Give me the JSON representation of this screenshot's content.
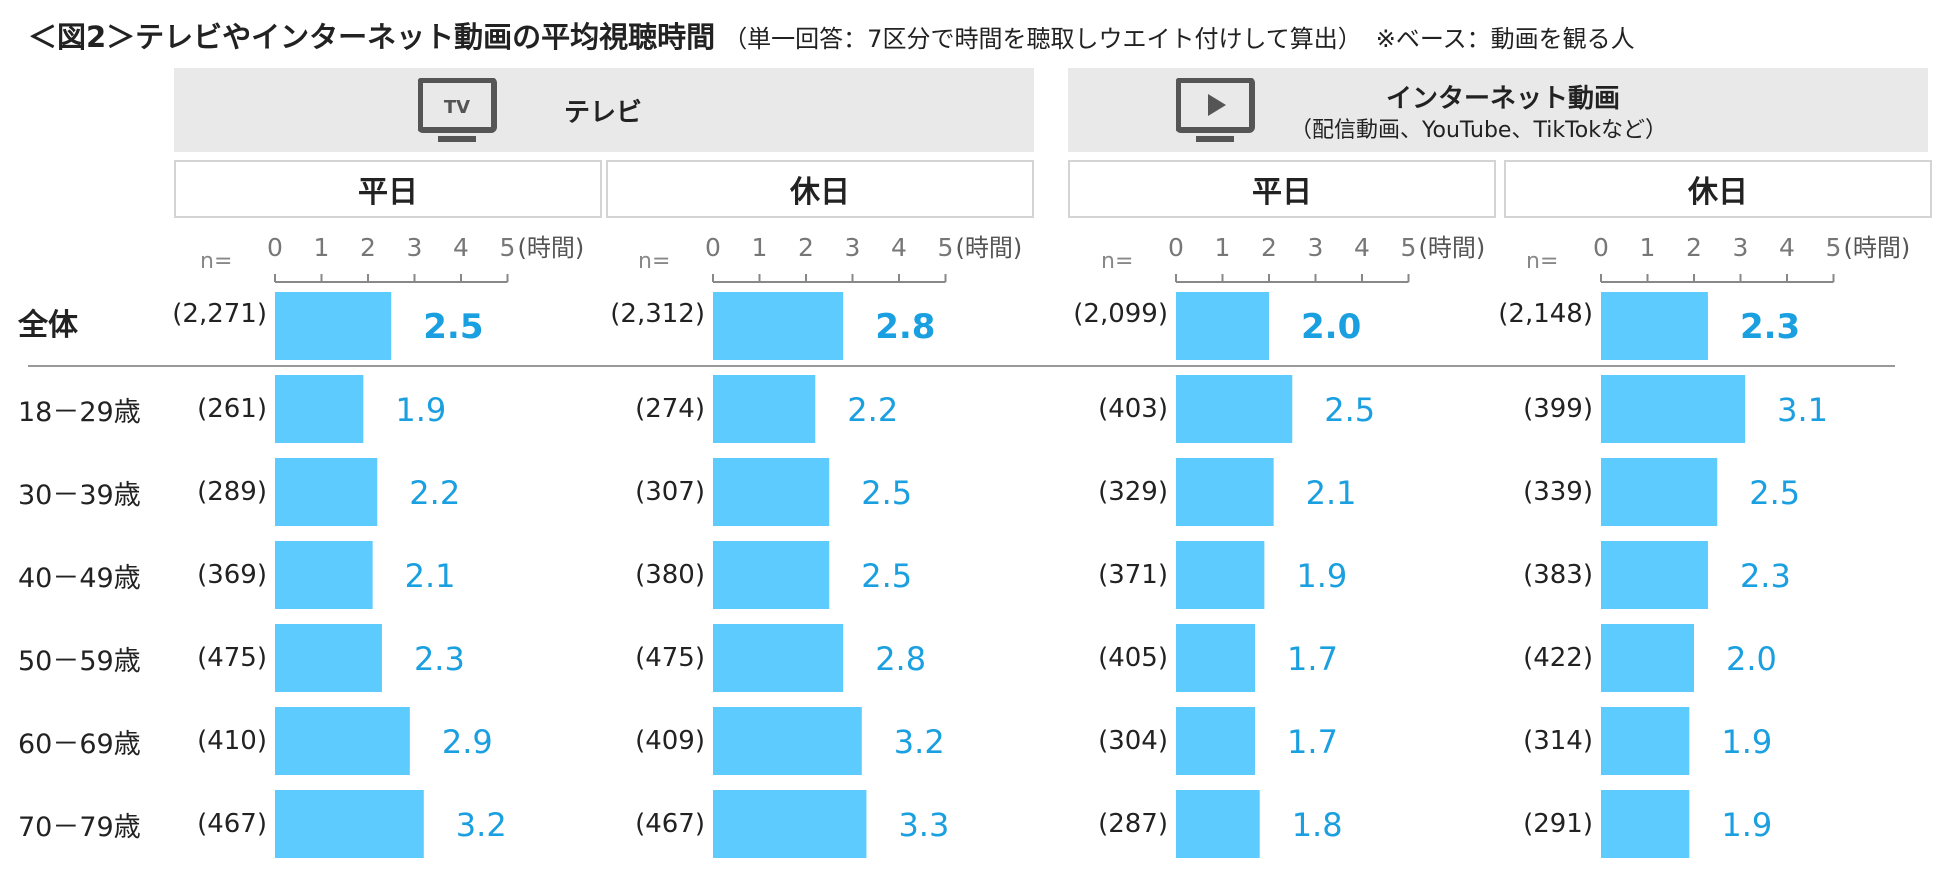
{
  "title": {
    "main": "＜図2＞テレビやインターネット動画の平均視聴時間",
    "sub": "（単一回答：7区分で時間を聴取しウエイト付けして算出）",
    "base": "※ベース：動画を観る人"
  },
  "groups": [
    {
      "label": "テレビ",
      "sub": "",
      "icon": "tv-icon"
    },
    {
      "label": "インターネット動画",
      "sub": "（配信動画、YouTube、TikTokなど）",
      "icon": "play-icon"
    }
  ],
  "n_prefix": "n=",
  "unit_label": "(時間)",
  "row_labels": [
    "全体",
    "18－29歳",
    "30－39歳",
    "40－49歳",
    "50－59歳",
    "60－69歳",
    "70－79歳"
  ],
  "colors": {
    "bar": "#5ecbff",
    "value": "#1a9fe0",
    "header_bg": "#e9e9e9",
    "axis": "#888888"
  },
  "chart_data": {
    "type": "bar",
    "orientation": "horizontal",
    "categories": [
      "全体",
      "18－29歳",
      "30－39歳",
      "40－49歳",
      "50－59歳",
      "60－69歳",
      "70－79歳"
    ],
    "xlim": [
      0,
      5
    ],
    "xticks": [
      "0",
      "1",
      "2",
      "3",
      "4",
      "5"
    ],
    "panels": [
      {
        "group": "テレビ",
        "name": "平日",
        "n": [
          "(2,271)",
          "(261)",
          "(289)",
          "(369)",
          "(475)",
          "(410)",
          "(467)"
        ],
        "values": [
          2.5,
          1.9,
          2.2,
          2.1,
          2.3,
          2.9,
          3.2
        ]
      },
      {
        "group": "テレビ",
        "name": "休日",
        "n": [
          "(2,312)",
          "(274)",
          "(307)",
          "(380)",
          "(475)",
          "(409)",
          "(467)"
        ],
        "values": [
          2.8,
          2.2,
          2.5,
          2.5,
          2.8,
          3.2,
          3.3
        ]
      },
      {
        "group": "インターネット動画",
        "name": "平日",
        "n": [
          "(2,099)",
          "(403)",
          "(329)",
          "(371)",
          "(405)",
          "(304)",
          "(287)"
        ],
        "values": [
          2.0,
          2.5,
          2.1,
          1.9,
          1.7,
          1.7,
          1.8
        ]
      },
      {
        "group": "インターネット動画",
        "name": "休日",
        "n": [
          "(2,148)",
          "(399)",
          "(339)",
          "(383)",
          "(422)",
          "(314)",
          "(291)"
        ],
        "values": [
          2.3,
          3.1,
          2.5,
          2.3,
          2.0,
          1.9,
          1.9
        ]
      }
    ]
  }
}
